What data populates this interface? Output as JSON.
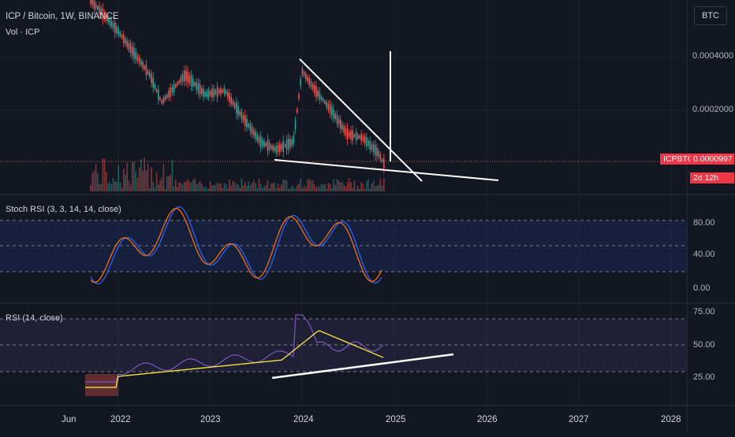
{
  "header": {
    "title": "ICP / Bitcoin, 1W, BINANCE",
    "volume_label": "Vol · ICP"
  },
  "price_axis": {
    "currency_badge": "BTC",
    "ticks": [
      "0.0004000",
      "0.0002000"
    ],
    "current": {
      "symbol": "ICPBTC",
      "value": "0.0000997",
      "countdown": "2d 12h"
    }
  },
  "stoch_pane": {
    "label": "Stoch RSI (3, 3, 14, 14, close)",
    "ticks": [
      "80.00",
      "40.00",
      "0.00"
    ]
  },
  "rsi_pane": {
    "label": "RSI (14, close)",
    "ticks": [
      "75.00",
      "50.00",
      "25.00"
    ]
  },
  "time_axis": {
    "labels": [
      "Jun",
      "2022",
      "2023",
      "2024",
      "2025",
      "2026",
      "2027",
      "2028"
    ]
  },
  "colors": {
    "background": "#131722",
    "up": "#26a69a",
    "down": "#ef5350",
    "stoch_k": "#2962ff",
    "stoch_d": "#ff6d00",
    "rsi": "#7e57c2",
    "rsi_ma": "#ffeb3b",
    "trendline": "#ffffff"
  }
}
